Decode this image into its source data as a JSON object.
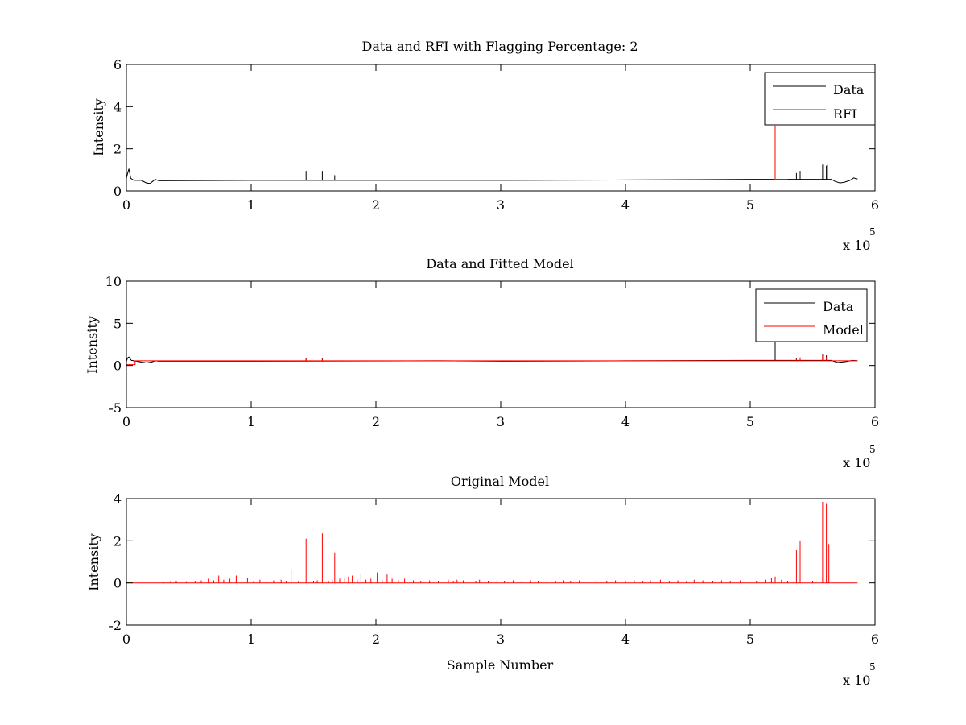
{
  "chart_data": [
    {
      "type": "line",
      "title": "Data and RFI with Flagging Percentage: 2",
      "xlabel": "",
      "ylabel": "Intensity",
      "xlim": [
        0,
        600000
      ],
      "ylim": [
        0,
        6
      ],
      "xticks": [
        0,
        1,
        2,
        3,
        4,
        5,
        6
      ],
      "yticks": [
        0,
        2,
        4,
        6
      ],
      "x_exponent": {
        "base": "x 10",
        "power": "5"
      },
      "grid": false,
      "legend_position": "top-right",
      "legend": [
        "Data",
        "RFI"
      ],
      "series": [
        {
          "name": "Data",
          "color": "#000000",
          "baseline": [
            [
              0,
              0.6
            ],
            [
              1000,
              0.85
            ],
            [
              2000,
              1.05
            ],
            [
              3500,
              0.6
            ],
            [
              6000,
              0.5
            ],
            [
              12000,
              0.5
            ],
            [
              16000,
              0.38
            ],
            [
              19000,
              0.35
            ],
            [
              21000,
              0.45
            ],
            [
              23000,
              0.55
            ],
            [
              26000,
              0.48
            ],
            [
              100000,
              0.5
            ],
            [
              200000,
              0.5
            ],
            [
              300000,
              0.5
            ],
            [
              400000,
              0.52
            ],
            [
              500000,
              0.55
            ],
            [
              565000,
              0.55
            ],
            [
              568000,
              0.45
            ],
            [
              572000,
              0.38
            ],
            [
              576000,
              0.42
            ],
            [
              580000,
              0.5
            ],
            [
              583000,
              0.62
            ],
            [
              586000,
              0.55
            ]
          ],
          "spikes": [
            [
              144000,
              0.95
            ],
            [
              157000,
              0.95
            ],
            [
              167000,
              0.75
            ],
            [
              537000,
              0.85
            ],
            [
              540000,
              0.95
            ],
            [
              558000,
              1.25
            ],
            [
              561000,
              1.2
            ]
          ]
        },
        {
          "name": "RFI",
          "color": "#ff0000",
          "baseline": [
            [
              519000,
              0.55
            ],
            [
              530000,
              0.55
            ]
          ],
          "spikes": [
            [
              520000,
              3.1
            ],
            [
              562000,
              1.25
            ]
          ]
        }
      ]
    },
    {
      "type": "line",
      "title": "Data and Fitted Model",
      "xlabel": "",
      "ylabel": "Intensity",
      "xlim": [
        0,
        600000
      ],
      "ylim": [
        -5,
        10
      ],
      "xticks": [
        0,
        1,
        2,
        3,
        4,
        5,
        6
      ],
      "yticks": [
        -5,
        0,
        5,
        10
      ],
      "x_exponent": {
        "base": "x 10",
        "power": "5"
      },
      "grid": false,
      "legend_position": "top-right",
      "legend": [
        "Data",
        "Model"
      ],
      "series": [
        {
          "name": "Data",
          "color": "#000000",
          "baseline": [
            [
              0,
              0.5
            ],
            [
              1000,
              0.9
            ],
            [
              2000,
              1.0
            ],
            [
              4000,
              0.6
            ],
            [
              8000,
              0.5
            ],
            [
              16000,
              0.3
            ],
            [
              20000,
              0.4
            ],
            [
              23000,
              0.55
            ],
            [
              26000,
              0.5
            ],
            [
              100000,
              0.5
            ],
            [
              250000,
              0.55
            ],
            [
              300000,
              0.5
            ],
            [
              400000,
              0.55
            ],
            [
              500000,
              0.6
            ],
            [
              565000,
              0.6
            ],
            [
              570000,
              0.35
            ],
            [
              576000,
              0.45
            ],
            [
              582000,
              0.6
            ],
            [
              586000,
              0.55
            ]
          ],
          "spikes": [
            [
              144000,
              0.9
            ],
            [
              157000,
              0.9
            ],
            [
              520000,
              2.8
            ],
            [
              537000,
              0.9
            ],
            [
              540000,
              0.95
            ],
            [
              558000,
              1.3
            ],
            [
              561000,
              1.2
            ]
          ]
        },
        {
          "name": "Model",
          "color": "#ff0000",
          "baseline": [
            [
              0,
              0.1
            ],
            [
              7000,
              0.1
            ],
            [
              7000,
              0.55
            ],
            [
              586000,
              0.55
            ]
          ],
          "spikes": [
            [
              144000,
              0.85
            ],
            [
              157000,
              0.8
            ],
            [
              537000,
              0.8
            ],
            [
              540000,
              0.85
            ],
            [
              558000,
              1.25
            ],
            [
              561000,
              1.05
            ]
          ]
        }
      ]
    },
    {
      "type": "line",
      "title": "Original Model",
      "xlabel": "Sample Number",
      "ylabel": "Intensity",
      "xlim": [
        0,
        600000
      ],
      "ylim": [
        -2,
        4
      ],
      "xticks": [
        0,
        1,
        2,
        3,
        4,
        5,
        6
      ],
      "yticks": [
        -2,
        0,
        2,
        4
      ],
      "x_exponent": {
        "base": "x 10",
        "power": "5"
      },
      "grid": false,
      "series": [
        {
          "name": "Model",
          "color": "#ff0000",
          "baseline": [
            [
              0,
              0
            ],
            [
              586000,
              0
            ]
          ],
          "spikes": [
            [
              30000,
              0.05
            ],
            [
              35000,
              0.08
            ],
            [
              40000,
              0.1
            ],
            [
              48000,
              0.08
            ],
            [
              55000,
              0.1
            ],
            [
              60000,
              0.12
            ],
            [
              66000,
              0.2
            ],
            [
              70000,
              0.12
            ],
            [
              74000,
              0.35
            ],
            [
              78000,
              0.15
            ],
            [
              83000,
              0.2
            ],
            [
              88000,
              0.35
            ],
            [
              92000,
              0.1
            ],
            [
              97000,
              0.25
            ],
            [
              102000,
              0.1
            ],
            [
              107000,
              0.15
            ],
            [
              112000,
              0.1
            ],
            [
              118000,
              0.12
            ],
            [
              124000,
              0.15
            ],
            [
              128000,
              0.1
            ],
            [
              132000,
              0.65
            ],
            [
              138000,
              0.1
            ],
            [
              144000,
              2.1
            ],
            [
              150000,
              0.1
            ],
            [
              153000,
              0.12
            ],
            [
              157000,
              2.35
            ],
            [
              162000,
              0.1
            ],
            [
              165000,
              0.15
            ],
            [
              167000,
              1.45
            ],
            [
              171000,
              0.2
            ],
            [
              175000,
              0.25
            ],
            [
              178000,
              0.3
            ],
            [
              181000,
              0.35
            ],
            [
              185000,
              0.15
            ],
            [
              188000,
              0.45
            ],
            [
              192000,
              0.15
            ],
            [
              196000,
              0.2
            ],
            [
              201000,
              0.5
            ],
            [
              205000,
              0.12
            ],
            [
              209000,
              0.4
            ],
            [
              213000,
              0.2
            ],
            [
              218000,
              0.12
            ],
            [
              223000,
              0.2
            ],
            [
              230000,
              0.12
            ],
            [
              236000,
              0.1
            ],
            [
              243000,
              0.12
            ],
            [
              250000,
              0.1
            ],
            [
              258000,
              0.15
            ],
            [
              262000,
              0.1
            ],
            [
              265000,
              0.15
            ],
            [
              270000,
              0.12
            ],
            [
              280000,
              0.1
            ],
            [
              283000,
              0.15
            ],
            [
              290000,
              0.1
            ],
            [
              297000,
              0.12
            ],
            [
              303000,
              0.1
            ],
            [
              310000,
              0.12
            ],
            [
              317000,
              0.1
            ],
            [
              324000,
              0.12
            ],
            [
              330000,
              0.1
            ],
            [
              337000,
              0.12
            ],
            [
              344000,
              0.1
            ],
            [
              350000,
              0.12
            ],
            [
              356000,
              0.1
            ],
            [
              363000,
              0.12
            ],
            [
              370000,
              0.1
            ],
            [
              377000,
              0.12
            ],
            [
              385000,
              0.1
            ],
            [
              392000,
              0.12
            ],
            [
              400000,
              0.1
            ],
            [
              407000,
              0.12
            ],
            [
              414000,
              0.1
            ],
            [
              420000,
              0.12
            ],
            [
              428000,
              0.15
            ],
            [
              435000,
              0.1
            ],
            [
              442000,
              0.12
            ],
            [
              449000,
              0.1
            ],
            [
              455000,
              0.15
            ],
            [
              462000,
              0.12
            ],
            [
              470000,
              0.1
            ],
            [
              477000,
              0.12
            ],
            [
              484000,
              0.1
            ],
            [
              492000,
              0.12
            ],
            [
              499000,
              0.18
            ],
            [
              505000,
              0.1
            ],
            [
              512000,
              0.15
            ],
            [
              517000,
              0.25
            ],
            [
              520000,
              0.3
            ],
            [
              525000,
              0.15
            ],
            [
              530000,
              0.1
            ],
            [
              537000,
              1.55
            ],
            [
              540000,
              2.0
            ],
            [
              550000,
              0.1
            ],
            [
              558000,
              3.85
            ],
            [
              561000,
              3.75
            ],
            [
              563000,
              1.85
            ]
          ]
        }
      ]
    }
  ]
}
